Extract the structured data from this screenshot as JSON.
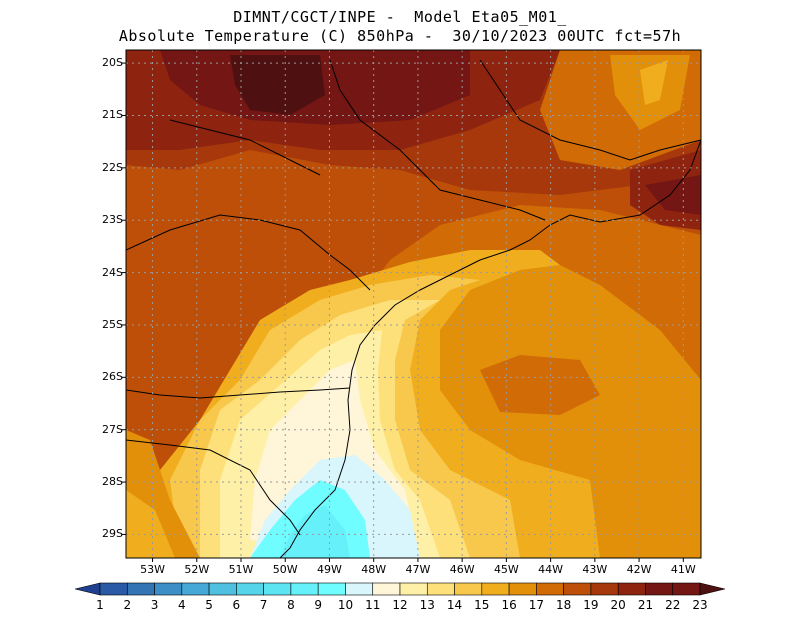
{
  "header": {
    "line1": "DIMNT/CGCT/INPE -  Model Eta05_M01_",
    "line2": "Absolute Temperature (C) 850hPa -  30/10/2023 00UTC fct=57h"
  },
  "map": {
    "lat_labels": [
      "20S",
      "21S",
      "22S",
      "23S",
      "24S",
      "25S",
      "26S",
      "27S",
      "28S",
      "29S"
    ],
    "lon_labels": [
      "53W",
      "52W",
      "51W",
      "50W",
      "49W",
      "48W",
      "47W",
      "46W",
      "45W",
      "44W",
      "43W",
      "42W",
      "41W"
    ],
    "lon_range": [
      -53.6,
      -40.6
    ],
    "lat_range": [
      -29.45,
      -19.75
    ]
  },
  "colorbar": {
    "labels": [
      "1",
      "2",
      "3",
      "4",
      "5",
      "6",
      "7",
      "8",
      "9",
      "10",
      "11",
      "12",
      "13",
      "14",
      "15",
      "16",
      "17",
      "18",
      "19",
      "20",
      "21",
      "22",
      "23"
    ],
    "colors": [
      "#1f3f8f",
      "#2a5aa6",
      "#3274b4",
      "#3b8fc6",
      "#46a8d6",
      "#4fc0e0",
      "#55d4ea",
      "#5de4f2",
      "#66f0fa",
      "#6ffdff",
      "#d8f6fb",
      "#fff5d8",
      "#fff0a8",
      "#fde07a",
      "#f8c84c",
      "#f0ae1e",
      "#e28f0a",
      "#d06b06",
      "#bd4f08",
      "#a6380c",
      "#8e2410",
      "#741614",
      "#4e1010"
    ]
  }
}
